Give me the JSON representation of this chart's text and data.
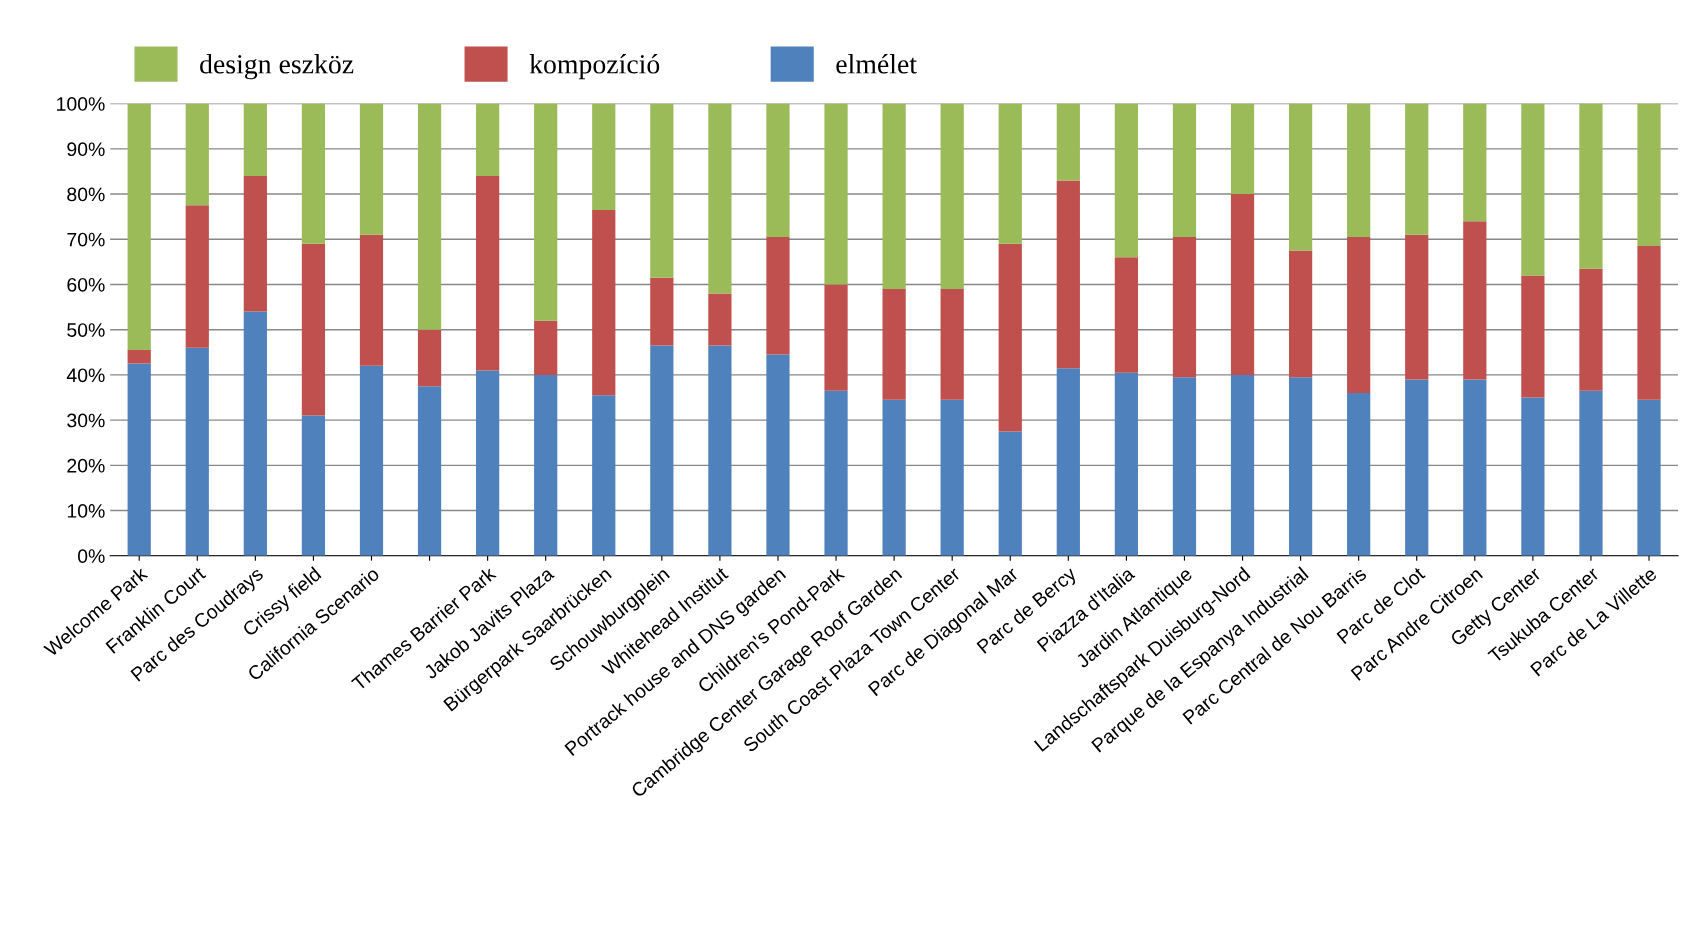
{
  "chart_data": {
    "type": "bar",
    "stacked": true,
    "categories": [
      "Welcome Park",
      "Franklin Court",
      "Parc des Coudrays",
      "Crissy field",
      "California Scenario",
      null,
      "Thames Barrier Park",
      "Jakob Javits Plaza",
      "Bürgerpark Saarbrücken",
      "Schouwburgplein",
      "Whitehead Institut",
      "Portrack house and DNS garden",
      "Children's Pond-Park",
      "Cambridge Center Garage Roof Garden",
      "South Coast Plaza Town Center",
      "Parc de Diagonal Mar",
      "Parc de Bercy",
      "Piazza d'Italia",
      "Jardin Atlantique",
      "Landschaftspark Duisburg-Nord",
      "Parque de la Espanya Industrial",
      "Parc Central de Nou Barris",
      "Parc de Clot",
      "Parc Andre Citroen",
      "Getty Center",
      "Tsukuba Center",
      "Parc de La Villette"
    ],
    "series": [
      {
        "name": "elmélet",
        "color": "#4f81bd",
        "values": [
          42.5,
          46,
          54,
          31,
          42,
          37.5,
          41,
          40,
          35.5,
          46.5,
          46.5,
          44.5,
          36.5,
          34.5,
          34.5,
          27.5,
          41.5,
          40.5,
          39.5,
          40,
          39.5,
          36,
          39,
          39,
          35,
          36.5,
          34.5
        ]
      },
      {
        "name": "kompozíció",
        "color": "#c0504d",
        "values": [
          3,
          31.5,
          30,
          38,
          29,
          12.5,
          43,
          12,
          41,
          15,
          11.5,
          26,
          23.5,
          24.5,
          24.5,
          41.5,
          41.5,
          25.5,
          31,
          40,
          28,
          34.5,
          32,
          35,
          27,
          27,
          34
        ]
      },
      {
        "name": "design eszköz",
        "color": "#9bbb59",
        "values": [
          54.5,
          22.5,
          16,
          31,
          29,
          50,
          16,
          48,
          23.5,
          38.5,
          42,
          29.5,
          40,
          41,
          41,
          31,
          17,
          34,
          29.5,
          20,
          32.5,
          29.5,
          29,
          26,
          38,
          36.5,
          31.5
        ]
      }
    ],
    "ylim": [
      0,
      100
    ],
    "yticks": [
      {
        "value": 0,
        "label": "0%"
      },
      {
        "value": 10,
        "label": "10%"
      },
      {
        "value": 20,
        "label": "20%"
      },
      {
        "value": 30,
        "label": "30%"
      },
      {
        "value": 40,
        "label": "40%"
      },
      {
        "value": 50,
        "label": "50%"
      },
      {
        "value": 60,
        "label": "60%"
      },
      {
        "value": 70,
        "label": "70%"
      },
      {
        "value": 80,
        "label": "80%"
      },
      {
        "value": 90,
        "label": "90%"
      },
      {
        "value": 100,
        "label": "100%"
      }
    ],
    "grid": "y",
    "legend": "top"
  }
}
